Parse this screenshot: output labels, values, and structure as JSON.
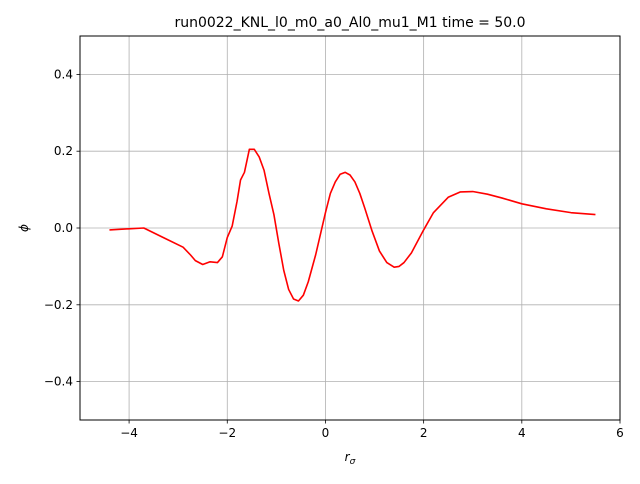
{
  "chart_data": {
    "type": "line",
    "title": "run0022_KNL_l0_m0_a0_Al0_mu1_M1 time = 50.0",
    "xlabel": "r",
    "xlabel_sub": "σ",
    "ylabel": "ϕ",
    "xlim": [
      -5,
      6
    ],
    "ylim": [
      -0.5,
      0.5
    ],
    "xticks": [
      -4,
      -2,
      0,
      2,
      4,
      6
    ],
    "xtick_labels": [
      "−4",
      "−2",
      "0",
      "2",
      "4",
      "6"
    ],
    "yticks": [
      -0.4,
      -0.2,
      0.0,
      0.2,
      0.4
    ],
    "ytick_labels": [
      "−0.4",
      "−0.2",
      "0.0",
      "0.2",
      "0.4"
    ],
    "grid": true,
    "legend": "none",
    "series": [
      {
        "color": "#ff0000",
        "x": [
          -4.4,
          -4.0,
          -3.7,
          -3.3,
          -2.9,
          -2.75,
          -2.65,
          -2.5,
          -2.35,
          -2.2,
          -2.1,
          -2.0,
          -1.9,
          -1.8,
          -1.73,
          -1.65,
          -1.55,
          -1.45,
          -1.35,
          -1.25,
          -1.15,
          -1.05,
          -0.95,
          -0.85,
          -0.75,
          -0.65,
          -0.55,
          -0.45,
          -0.35,
          -0.2,
          0.0,
          0.1,
          0.2,
          0.3,
          0.4,
          0.5,
          0.6,
          0.7,
          0.8,
          0.95,
          1.1,
          1.25,
          1.4,
          1.5,
          1.6,
          1.75,
          2.0,
          2.2,
          2.5,
          2.75,
          3.0,
          3.3,
          3.6,
          4.0,
          4.5,
          5.0,
          5.5
        ],
        "y": [
          -0.005,
          -0.002,
          0.0,
          -0.025,
          -0.05,
          -0.07,
          -0.085,
          -0.095,
          -0.088,
          -0.09,
          -0.075,
          -0.025,
          0.005,
          0.07,
          0.125,
          0.145,
          0.205,
          0.205,
          0.185,
          0.15,
          0.09,
          0.035,
          -0.04,
          -0.11,
          -0.16,
          -0.185,
          -0.19,
          -0.175,
          -0.14,
          -0.07,
          0.04,
          0.09,
          0.12,
          0.14,
          0.145,
          0.138,
          0.12,
          0.09,
          0.052,
          -0.008,
          -0.06,
          -0.09,
          -0.102,
          -0.1,
          -0.09,
          -0.065,
          -0.005,
          0.04,
          0.08,
          0.094,
          0.095,
          0.088,
          0.078,
          0.063,
          0.05,
          0.04,
          0.035
        ]
      }
    ]
  }
}
